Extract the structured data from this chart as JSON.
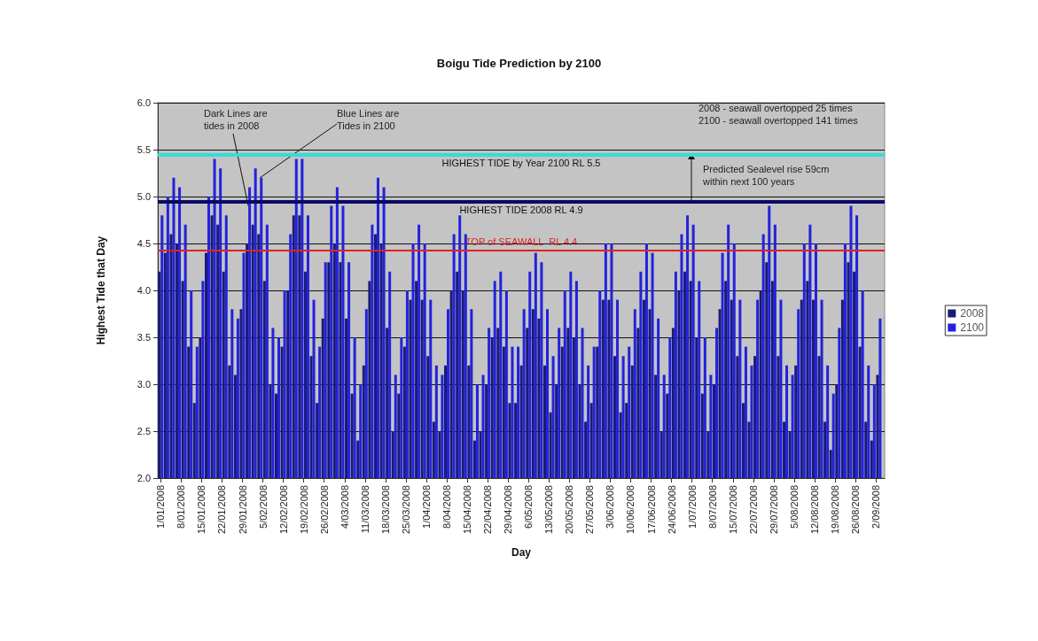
{
  "chart_data": {
    "type": "bar",
    "title": "Boigu Tide Prediction by 2100",
    "xlabel": "Day",
    "ylabel": "Highest Tide that Day",
    "x": [
      "2008-01-01",
      "2008-01-03",
      "2008-01-05",
      "2008-01-07",
      "2008-01-09",
      "2008-01-11",
      "2008-01-13",
      "2008-01-15",
      "2008-01-17",
      "2008-01-19",
      "2008-01-21",
      "2008-01-23",
      "2008-01-25",
      "2008-01-27",
      "2008-01-29",
      "2008-01-31",
      "2008-02-02",
      "2008-02-04",
      "2008-02-06",
      "2008-02-08",
      "2008-02-10",
      "2008-02-12",
      "2008-02-14",
      "2008-02-16",
      "2008-02-18",
      "2008-02-20",
      "2008-02-22",
      "2008-02-24",
      "2008-02-26",
      "2008-02-28",
      "2008-03-01",
      "2008-03-03",
      "2008-03-05",
      "2008-03-07",
      "2008-03-09",
      "2008-03-11",
      "2008-03-13",
      "2008-03-15",
      "2008-03-17",
      "2008-03-19",
      "2008-03-21",
      "2008-03-23",
      "2008-03-25",
      "2008-03-27",
      "2008-03-29",
      "2008-03-31",
      "2008-04-02",
      "2008-04-04",
      "2008-04-06",
      "2008-04-08",
      "2008-04-10",
      "2008-04-12",
      "2008-04-14",
      "2008-04-16",
      "2008-04-18",
      "2008-04-20",
      "2008-04-22",
      "2008-04-24",
      "2008-04-26",
      "2008-04-28",
      "2008-04-30",
      "2008-05-02",
      "2008-05-04",
      "2008-05-06",
      "2008-05-08",
      "2008-05-10",
      "2008-05-12",
      "2008-05-14",
      "2008-05-16",
      "2008-05-18",
      "2008-05-20",
      "2008-05-22",
      "2008-05-24",
      "2008-05-26",
      "2008-05-28",
      "2008-05-30",
      "2008-06-01",
      "2008-06-03",
      "2008-06-05",
      "2008-06-07",
      "2008-06-09",
      "2008-06-11",
      "2008-06-13",
      "2008-06-15",
      "2008-06-17",
      "2008-06-19",
      "2008-06-21",
      "2008-06-23",
      "2008-06-25",
      "2008-06-27",
      "2008-06-29",
      "2008-07-01",
      "2008-07-03",
      "2008-07-05",
      "2008-07-07",
      "2008-07-09",
      "2008-07-11",
      "2008-07-13",
      "2008-07-15",
      "2008-07-17",
      "2008-07-19",
      "2008-07-21",
      "2008-07-23",
      "2008-07-25",
      "2008-07-27",
      "2008-07-29",
      "2008-07-31",
      "2008-08-02",
      "2008-08-04",
      "2008-08-06",
      "2008-08-08",
      "2008-08-10",
      "2008-08-12",
      "2008-08-14",
      "2008-08-16",
      "2008-08-18",
      "2008-08-20",
      "2008-08-22",
      "2008-08-24",
      "2008-08-26",
      "2008-08-28",
      "2008-08-30",
      "2008-09-01",
      "2008-09-03"
    ],
    "series": [
      {
        "name": "2008",
        "color": "#1a1a7a",
        "values": [
          4.2,
          4.4,
          4.6,
          4.5,
          4.1,
          3.4,
          2.8,
          3.5,
          4.4,
          4.8,
          4.7,
          4.2,
          3.2,
          3.1,
          3.8,
          4.5,
          4.7,
          4.6,
          4.1,
          3.0,
          2.9,
          3.4,
          4.0,
          4.8,
          4.8,
          4.2,
          3.3,
          2.8,
          3.7,
          4.3,
          4.5,
          4.3,
          3.7,
          2.9,
          2.4,
          3.2,
          4.1,
          4.6,
          4.5,
          3.6,
          2.5,
          2.9,
          3.4,
          3.9,
          4.1,
          3.9,
          3.3,
          2.6,
          2.5,
          3.2,
          4.0,
          4.2,
          4.0,
          3.2,
          2.4,
          2.5,
          3.0,
          3.5,
          3.6,
          3.4,
          2.8,
          2.8,
          3.2,
          3.6,
          3.8,
          3.7,
          3.2,
          2.7,
          3.0,
          3.4,
          3.6,
          3.5,
          3.0,
          2.6,
          2.8,
          3.4,
          3.9,
          3.9,
          3.3,
          2.7,
          2.8,
          3.2,
          3.6,
          3.9,
          3.8,
          3.1,
          2.5,
          2.9,
          3.6,
          4.0,
          4.2,
          4.1,
          3.5,
          2.9,
          2.5,
          3.0,
          3.8,
          4.1,
          3.9,
          3.3,
          2.8,
          2.6,
          3.3,
          4.0,
          4.3,
          4.1,
          3.3,
          2.6,
          2.5,
          3.2,
          3.9,
          4.1,
          3.9,
          3.3,
          2.6,
          2.3,
          3.0,
          3.9,
          4.3,
          4.2,
          3.4,
          2.6,
          2.4,
          3.1
        ]
      },
      {
        "name": "2100",
        "color": "#2222dd",
        "values": [
          4.8,
          5.0,
          5.2,
          5.1,
          4.7,
          4.0,
          3.4,
          4.1,
          5.0,
          5.4,
          5.3,
          4.8,
          3.8,
          3.7,
          4.4,
          5.1,
          5.3,
          5.2,
          4.7,
          3.6,
          3.5,
          4.0,
          4.6,
          5.4,
          5.4,
          4.8,
          3.9,
          3.4,
          4.3,
          4.9,
          5.1,
          4.9,
          4.3,
          3.5,
          3.0,
          3.8,
          4.7,
          5.2,
          5.1,
          4.2,
          3.1,
          3.5,
          4.0,
          4.5,
          4.7,
          4.5,
          3.9,
          3.2,
          3.1,
          3.8,
          4.6,
          4.8,
          4.6,
          3.8,
          3.0,
          3.1,
          3.6,
          4.1,
          4.2,
          4.0,
          3.4,
          3.4,
          3.8,
          4.2,
          4.4,
          4.3,
          3.8,
          3.3,
          3.6,
          4.0,
          4.2,
          4.1,
          3.6,
          3.2,
          3.4,
          4.0,
          4.5,
          4.5,
          3.9,
          3.3,
          3.4,
          3.8,
          4.2,
          4.5,
          4.4,
          3.7,
          3.1,
          3.5,
          4.2,
          4.6,
          4.8,
          4.7,
          4.1,
          3.5,
          3.1,
          3.6,
          4.4,
          4.7,
          4.5,
          3.9,
          3.4,
          3.2,
          3.9,
          4.6,
          4.9,
          4.7,
          3.9,
          3.2,
          3.1,
          3.8,
          4.5,
          4.7,
          4.5,
          3.9,
          3.2,
          2.9,
          3.6,
          4.5,
          4.9,
          4.8,
          4.0,
          3.2,
          3.0,
          3.7
        ]
      }
    ],
    "xlim": [
      "2007-12-31",
      "2008-09-05"
    ],
    "xticks": [
      {
        "value": "2008-01-01",
        "label": "1/01/2008"
      },
      {
        "value": "2008-01-08",
        "label": "8/01/2008"
      },
      {
        "value": "2008-01-15",
        "label": "15/01/2008"
      },
      {
        "value": "2008-01-22",
        "label": "22/01/2008"
      },
      {
        "value": "2008-01-29",
        "label": "29/01/2008"
      },
      {
        "value": "2008-02-05",
        "label": "5/02/2008"
      },
      {
        "value": "2008-02-12",
        "label": "12/02/2008"
      },
      {
        "value": "2008-02-19",
        "label": "19/02/2008"
      },
      {
        "value": "2008-02-26",
        "label": "26/02/2008"
      },
      {
        "value": "2008-03-04",
        "label": "4/03/2008"
      },
      {
        "value": "2008-03-11",
        "label": "11/03/2008"
      },
      {
        "value": "2008-03-18",
        "label": "18/03/2008"
      },
      {
        "value": "2008-03-25",
        "label": "25/03/2008"
      },
      {
        "value": "2008-04-01",
        "label": "1/04/2008"
      },
      {
        "value": "2008-04-08",
        "label": "8/04/2008"
      },
      {
        "value": "2008-04-15",
        "label": "15/04/2008"
      },
      {
        "value": "2008-04-22",
        "label": "22/04/2008"
      },
      {
        "value": "2008-04-29",
        "label": "29/04/2008"
      },
      {
        "value": "2008-05-06",
        "label": "6/05/2008"
      },
      {
        "value": "2008-05-13",
        "label": "13/05/2008"
      },
      {
        "value": "2008-05-20",
        "label": "20/05/2008"
      },
      {
        "value": "2008-05-27",
        "label": "27/05/2008"
      },
      {
        "value": "2008-06-03",
        "label": "3/06/2008"
      },
      {
        "value": "2008-06-10",
        "label": "10/06/2008"
      },
      {
        "value": "2008-06-17",
        "label": "17/06/2008"
      },
      {
        "value": "2008-06-24",
        "label": "24/06/2008"
      },
      {
        "value": "2008-07-01",
        "label": "1/07/2008"
      },
      {
        "value": "2008-07-08",
        "label": "8/07/2008"
      },
      {
        "value": "2008-07-15",
        "label": "15/07/2008"
      },
      {
        "value": "2008-07-22",
        "label": "22/07/2008"
      },
      {
        "value": "2008-07-29",
        "label": "29/07/2008"
      },
      {
        "value": "2008-08-05",
        "label": "5/08/2008"
      },
      {
        "value": "2008-08-12",
        "label": "12/08/2008"
      },
      {
        "value": "2008-08-19",
        "label": "19/08/2008"
      },
      {
        "value": "2008-08-26",
        "label": "26/08/2008"
      },
      {
        "value": "2008-09-02",
        "label": "2/09/2008"
      }
    ],
    "ylim": [
      2,
      6
    ],
    "yticks": [
      {
        "value": 2,
        "label": "2.0"
      },
      {
        "value": 2.5,
        "label": "2.5"
      },
      {
        "value": 3,
        "label": "3.0"
      },
      {
        "value": 3.5,
        "label": "3.5"
      },
      {
        "value": 4,
        "label": "4.0"
      },
      {
        "value": 4.5,
        "label": "4.5"
      },
      {
        "value": 5,
        "label": "5.0"
      },
      {
        "value": 5.5,
        "label": "5.5"
      },
      {
        "value": 6,
        "label": "6.0"
      }
    ],
    "grid": "y",
    "legend": "right",
    "ref_lines": [
      {
        "axis": "y",
        "value": 5.45,
        "label": "HIGHEST TIDE by Year 2100 RL 5.5",
        "color": "#33dddd"
      },
      {
        "axis": "y",
        "value": 4.95,
        "label": "HIGHEST TIDE 2008 RL 4.9",
        "color": "#0a0a66"
      },
      {
        "axis": "y",
        "value": 4.43,
        "label": "TOP of SEAWALL  RL 4.4",
        "color": "#dd2222"
      }
    ],
    "annotations": [
      {
        "text": "Dark Lines are\ntides in 2008",
        "x": "2008-01-31",
        "y": 4.9
      },
      {
        "text": "Blue Lines are\nTides in 2100",
        "x": "2008-02-04",
        "y": 5.2
      },
      "2008 - seawall overtopped 25 times\n2100 - seawall overtopped 141 times",
      "Predicted Sealevel rise 59cm\nwithin next 100 years"
    ]
  }
}
